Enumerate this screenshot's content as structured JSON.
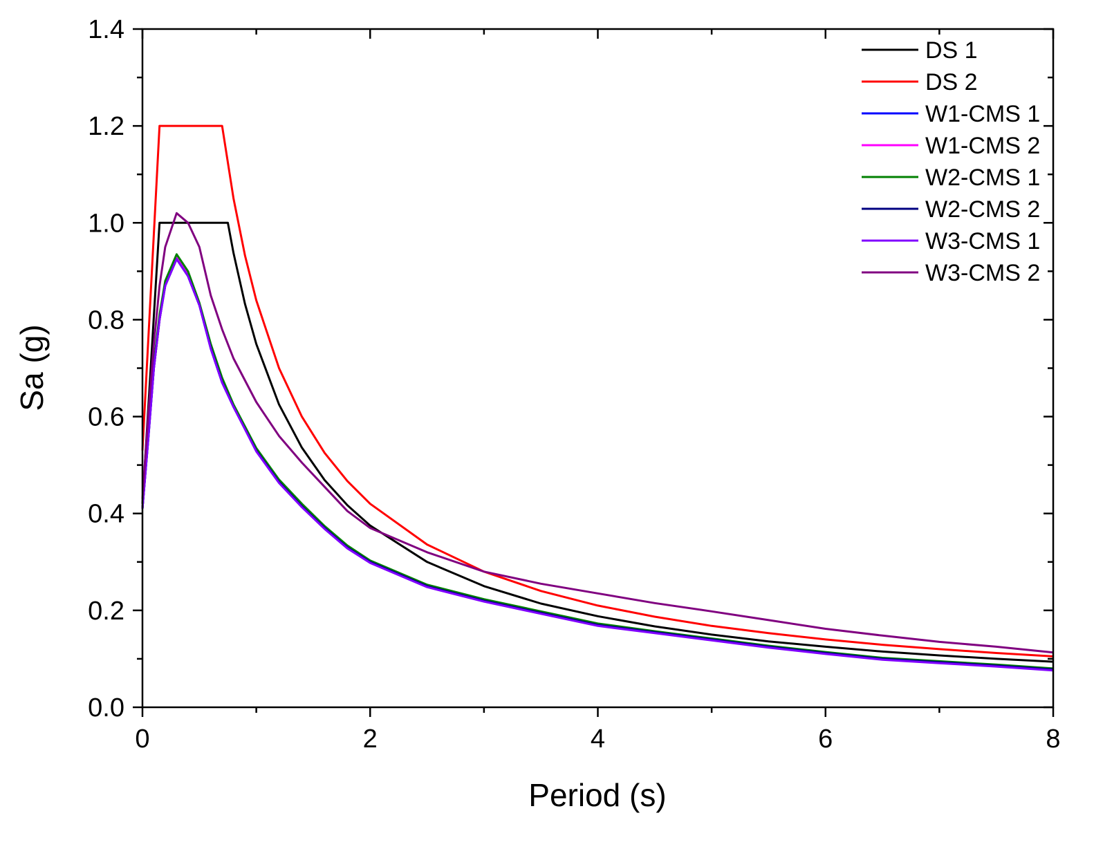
{
  "chart_data": {
    "type": "line",
    "title": "",
    "xlabel": "Period (s)",
    "ylabel": "Sa (g)",
    "xlim": [
      0,
      8
    ],
    "ylim": [
      0,
      1.4
    ],
    "x_major_ticks": [
      0,
      2,
      4,
      6,
      8
    ],
    "x_tick_labels": [
      "0",
      "2",
      "4",
      "6",
      "8"
    ],
    "x_minor_ticks": [
      1,
      3,
      5,
      7
    ],
    "y_major_ticks": [
      0,
      0.2,
      0.4,
      0.6,
      0.8,
      1.0,
      1.2,
      1.4
    ],
    "y_tick_labels": [
      "0.0",
      "0.2",
      "0.4",
      "0.6",
      "0.8",
      "1.0",
      "1.2",
      "1.4"
    ],
    "y_minor_ticks": [
      0.1,
      0.3,
      0.5,
      0.7,
      0.9,
      1.1,
      1.3
    ],
    "grid": false,
    "legend_position": "top-right",
    "series": [
      {
        "name": "DS 1",
        "color": "#000000",
        "x": [
          0,
          0.15,
          0.75,
          0.8,
          0.9,
          1.0,
          1.2,
          1.4,
          1.6,
          1.8,
          2.0,
          2.5,
          3.0,
          3.5,
          4.0,
          4.5,
          5.0,
          5.5,
          6.0,
          6.5,
          7.0,
          7.5,
          8.0
        ],
        "y": [
          0.42,
          1.0,
          1.0,
          0.9375,
          0.833,
          0.75,
          0.625,
          0.536,
          0.469,
          0.417,
          0.375,
          0.3,
          0.25,
          0.214,
          0.188,
          0.167,
          0.15,
          0.136,
          0.125,
          0.115,
          0.107,
          0.1,
          0.094
        ]
      },
      {
        "name": "DS 2",
        "color": "#ff0000",
        "x": [
          0,
          0.15,
          0.7,
          0.8,
          0.9,
          1.0,
          1.2,
          1.4,
          1.6,
          1.8,
          2.0,
          2.5,
          3.0,
          3.5,
          4.0,
          4.5,
          5.0,
          5.5,
          6.0,
          6.5,
          7.0,
          7.5,
          8.0
        ],
        "y": [
          0.53,
          1.2,
          1.2,
          1.05,
          0.933,
          0.84,
          0.7,
          0.6,
          0.525,
          0.467,
          0.42,
          0.336,
          0.28,
          0.24,
          0.21,
          0.187,
          0.168,
          0.153,
          0.14,
          0.129,
          0.12,
          0.112,
          0.105
        ]
      },
      {
        "name": "W1-CMS 1",
        "color": "#0000ff",
        "x": [
          0,
          0.05,
          0.1,
          0.15,
          0.2,
          0.3,
          0.4,
          0.5,
          0.6,
          0.7,
          0.8,
          1.0,
          1.2,
          1.4,
          1.6,
          1.8,
          2.0,
          2.5,
          3.0,
          3.5,
          4.0,
          4.5,
          5.0,
          5.5,
          6.0,
          6.5,
          7.0,
          7.5,
          8.0
        ],
        "y": [
          0.41,
          0.55,
          0.7,
          0.8,
          0.87,
          0.93,
          0.89,
          0.83,
          0.74,
          0.67,
          0.62,
          0.53,
          0.465,
          0.415,
          0.37,
          0.33,
          0.3,
          0.25,
          0.22,
          0.195,
          0.17,
          0.155,
          0.14,
          0.125,
          0.112,
          0.1,
          0.093,
          0.086,
          0.078
        ]
      },
      {
        "name": "W1-CMS 2",
        "color": "#ff00ff",
        "x": [
          0,
          0.05,
          0.1,
          0.15,
          0.2,
          0.3,
          0.4,
          0.5,
          0.6,
          0.7,
          0.8,
          1.0,
          1.2,
          1.4,
          1.6,
          1.8,
          2.0,
          2.5,
          3.0,
          3.5,
          4.0,
          4.5,
          5.0,
          5.5,
          6.0,
          6.5,
          7.0,
          7.5,
          8.0
        ],
        "y": [
          0.41,
          0.56,
          0.7,
          0.8,
          0.87,
          0.93,
          0.895,
          0.83,
          0.745,
          0.675,
          0.62,
          0.53,
          0.466,
          0.416,
          0.371,
          0.331,
          0.301,
          0.251,
          0.221,
          0.196,
          0.171,
          0.156,
          0.141,
          0.126,
          0.113,
          0.101,
          0.094,
          0.087,
          0.079
        ]
      },
      {
        "name": "W2-CMS 1",
        "color": "#008000",
        "x": [
          0,
          0.05,
          0.1,
          0.15,
          0.2,
          0.3,
          0.4,
          0.5,
          0.6,
          0.7,
          0.8,
          1.0,
          1.2,
          1.4,
          1.6,
          1.8,
          2.0,
          2.5,
          3.0,
          3.5,
          4.0,
          4.5,
          5.0,
          5.5,
          6.0,
          6.5,
          7.0,
          7.5,
          8.0
        ],
        "y": [
          0.41,
          0.56,
          0.71,
          0.81,
          0.88,
          0.935,
          0.9,
          0.835,
          0.75,
          0.68,
          0.625,
          0.535,
          0.47,
          0.42,
          0.374,
          0.334,
          0.303,
          0.253,
          0.223,
          0.198,
          0.173,
          0.157,
          0.142,
          0.127,
          0.114,
          0.102,
          0.095,
          0.088,
          0.08
        ]
      },
      {
        "name": "W2-CMS 2",
        "color": "#000080",
        "x": [
          0,
          0.05,
          0.1,
          0.15,
          0.2,
          0.3,
          0.4,
          0.5,
          0.6,
          0.7,
          0.8,
          1.0,
          1.2,
          1.4,
          1.6,
          1.8,
          2.0,
          2.5,
          3.0,
          3.5,
          4.0,
          4.5,
          5.0,
          5.5,
          6.0,
          6.5,
          7.0,
          7.5,
          8.0
        ],
        "y": [
          0.41,
          0.55,
          0.7,
          0.8,
          0.87,
          0.925,
          0.89,
          0.83,
          0.742,
          0.672,
          0.62,
          0.53,
          0.465,
          0.415,
          0.37,
          0.33,
          0.3,
          0.25,
          0.22,
          0.195,
          0.17,
          0.155,
          0.14,
          0.125,
          0.112,
          0.1,
          0.093,
          0.086,
          0.078
        ]
      },
      {
        "name": "W3-CMS 1",
        "color": "#8000ff",
        "x": [
          0,
          0.05,
          0.1,
          0.15,
          0.2,
          0.3,
          0.4,
          0.5,
          0.6,
          0.7,
          0.8,
          1.0,
          1.2,
          1.4,
          1.6,
          1.8,
          2.0,
          2.5,
          3.0,
          3.5,
          4.0,
          4.5,
          5.0,
          5.5,
          6.0,
          6.5,
          7.0,
          7.5,
          8.0
        ],
        "y": [
          0.41,
          0.55,
          0.7,
          0.8,
          0.87,
          0.925,
          0.89,
          0.83,
          0.74,
          0.67,
          0.62,
          0.528,
          0.463,
          0.413,
          0.368,
          0.328,
          0.298,
          0.248,
          0.218,
          0.193,
          0.168,
          0.153,
          0.138,
          0.123,
          0.11,
          0.098,
          0.091,
          0.084,
          0.076
        ]
      },
      {
        "name": "W3-CMS 2",
        "color": "#800080",
        "x": [
          0,
          0.05,
          0.1,
          0.15,
          0.2,
          0.3,
          0.4,
          0.5,
          0.6,
          0.7,
          0.8,
          1.0,
          1.2,
          1.4,
          1.6,
          1.8,
          2.0,
          2.5,
          3.0,
          3.5,
          4.0,
          4.5,
          5.0,
          5.5,
          6.0,
          6.5,
          7.0,
          7.5,
          8.0
        ],
        "y": [
          0.43,
          0.6,
          0.75,
          0.87,
          0.95,
          1.02,
          1.0,
          0.95,
          0.85,
          0.78,
          0.72,
          0.63,
          0.56,
          0.505,
          0.455,
          0.405,
          0.37,
          0.32,
          0.28,
          0.255,
          0.235,
          0.215,
          0.198,
          0.18,
          0.162,
          0.148,
          0.135,
          0.125,
          0.113
        ]
      }
    ]
  }
}
